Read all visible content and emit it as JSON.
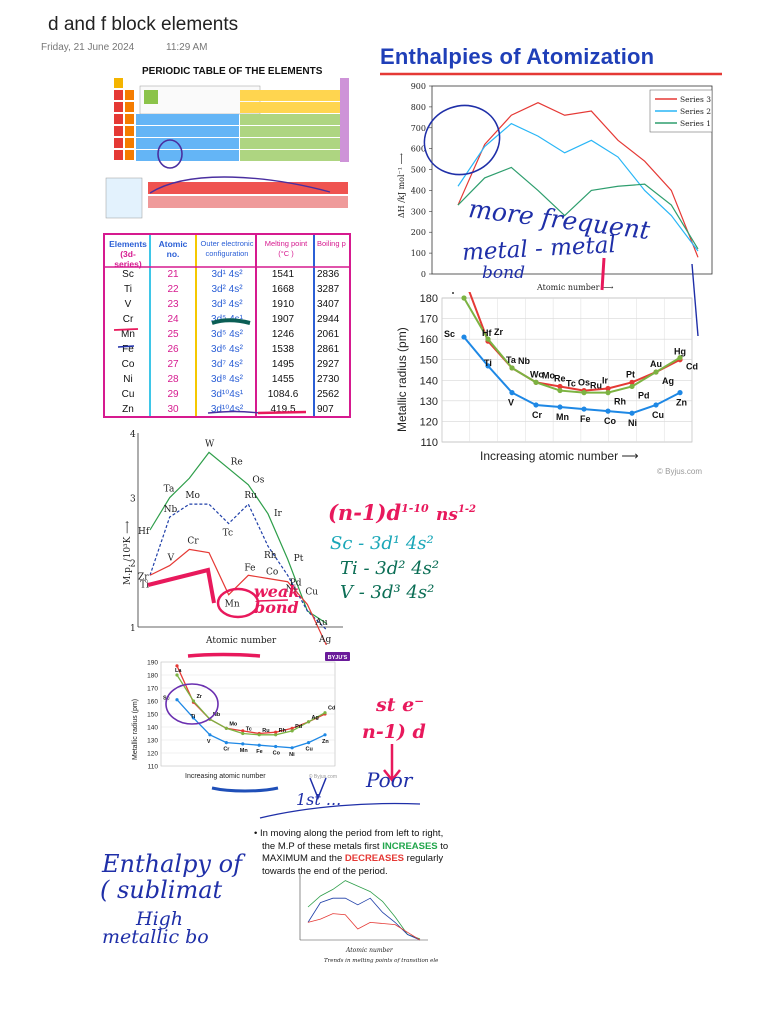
{
  "note": {
    "title": "d and f block elements",
    "date": "Friday, 21 June 2024",
    "time": "11:29 AM"
  },
  "colors": {
    "ink_blue": "#1f2fa8",
    "ink_pink": "#e8195c",
    "ink_teal": "#1aa7b8",
    "table_header_blue": "#2b5fd6",
    "table_header_magenta": "#d61a8f"
  },
  "periodic": {
    "title": "PERIODIC TABLE OF THE ELEMENTS",
    "table": {
      "headers": [
        "Elements\n(3d-series)",
        "Atomic no.",
        "Outer electronic configuration",
        "Melting point (°C )",
        "Boiling p"
      ],
      "header_lines": [
        [
          "Elements",
          "(3d-series)"
        ],
        [
          "Atomic",
          "no."
        ],
        [
          "Outer electronic",
          "configuration"
        ],
        [
          "Melting point",
          "(°C )"
        ],
        [
          "Boiling p",
          ""
        ]
      ],
      "rows": [
        {
          "el": "Sc",
          "z": "21",
          "cfg": "3d¹ 4s²",
          "mp": "1541",
          "bp": "2836"
        },
        {
          "el": "Ti",
          "z": "22",
          "cfg": "3d² 4s²",
          "mp": "1668",
          "bp": "3287"
        },
        {
          "el": "V",
          "z": "23",
          "cfg": "3d³ 4s²",
          "mp": "1910",
          "bp": "3407"
        },
        {
          "el": "Cr",
          "z": "24",
          "cfg": "3d⁵ 4s¹",
          "mp": "1907",
          "bp": "2944"
        },
        {
          "el": "Mn",
          "z": "25",
          "cfg": "3d⁵ 4s²",
          "mp": "1246",
          "bp": "2061"
        },
        {
          "el": "Fe",
          "z": "26",
          "cfg": "3d⁶ 4s²",
          "mp": "1538",
          "bp": "2861"
        },
        {
          "el": "Co",
          "z": "27",
          "cfg": "3d⁷ 4s²",
          "mp": "1495",
          "bp": "2927"
        },
        {
          "el": "Ni",
          "z": "28",
          "cfg": "3d⁸ 4s²",
          "mp": "1455",
          "bp": "2730"
        },
        {
          "el": "Cu",
          "z": "29",
          "cfg": "3d¹⁰4s¹",
          "mp": "1084.6",
          "bp": "2562"
        },
        {
          "el": "Zn",
          "z": "30",
          "cfg": "3d¹⁰4s²",
          "mp": "419.5",
          "bp": "907"
        }
      ]
    }
  },
  "enthalpy": {
    "heading": "Enthalpies  of Atomization",
    "ylabel": "ΔH /kJ mol⁻¹ ⟶",
    "xlabel": "Atomic number ⟶",
    "legend": [
      "Series 3",
      "Series 2",
      "Series 1"
    ]
  },
  "radius_large": {
    "ylabel": "Metallic radius (pm)",
    "xlabel": "Increasing atomic number  ⟶",
    "credit": "© Byjus.com"
  },
  "mp_chart": {
    "ylabel": "M.p. /10³K ⟶",
    "xlabel": "Atomic number"
  },
  "radius_small": {
    "ylabel": "Metallic radius (pm)",
    "xlabel": "Increasing atomic number",
    "credit": "© Byjus.com",
    "logo": "BYJU'S"
  },
  "bullet": {
    "text_a": "In moving along the period from left to right, the M.P of these metals first ",
    "strong1": "INCREASES",
    "text_b": " to MAXIMUM and the ",
    "strong2": "DECREASES",
    "text_c": " regularly towards the end of the period.",
    "caption_xlabel": "Atomic number",
    "caption": "Trends in melting points of transition elements"
  },
  "handwriting": {
    "more_frequent": "more frequent",
    "metal_metal": "metal - metal",
    "bond": "bond",
    "n1d_config": "(n-1)d",
    "n1d_sup": "1-10",
    "ns_config": "ns",
    "ns_sup": "1-2",
    "sc_line": "Sc - 3d¹ 4s²",
    "ti_line": "Ti - 3d² 4s²",
    "v_line": "V - 3d³ 4s²",
    "weak_bond": "weak bond",
    "st_e": "st e⁻",
    "n1d": "n-1) d",
    "poor": "Poor",
    "first_t": "1st ...",
    "enthalpy_of": "Enthalpy of",
    "sublimation": "( sublimat",
    "high": "High",
    "metallic": "metallic bo"
  }
}
